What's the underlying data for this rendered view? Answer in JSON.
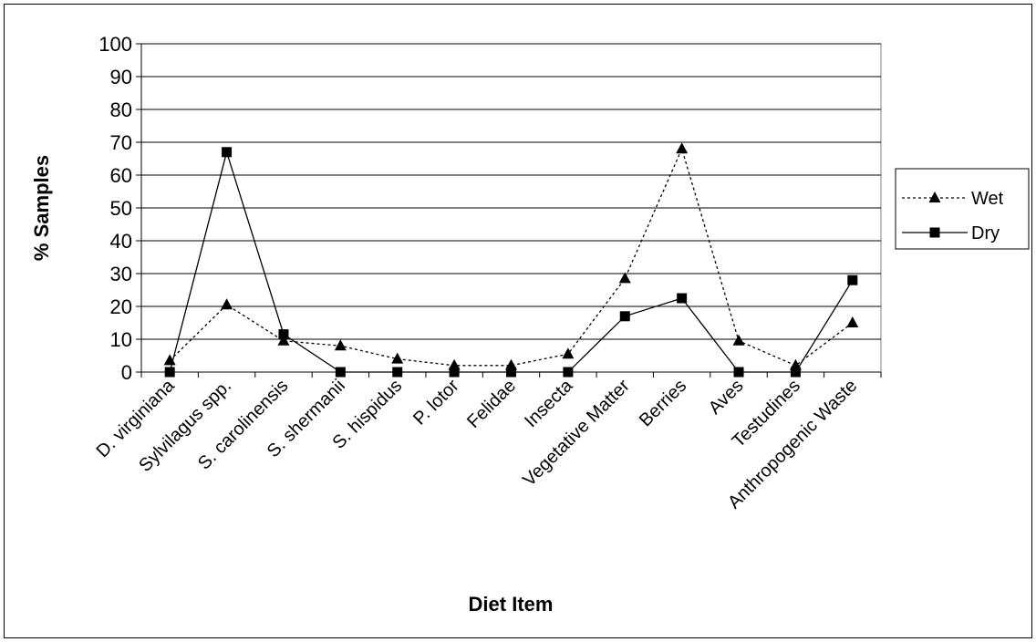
{
  "chart_data": {
    "type": "line",
    "title": "",
    "xlabel": "Diet Item",
    "ylabel": "% Samples",
    "ylim": [
      0,
      100
    ],
    "yticks": [
      0,
      10,
      20,
      30,
      40,
      50,
      60,
      70,
      80,
      90,
      100
    ],
    "grid": "horizontal",
    "legend_position": "right",
    "categories": [
      "D. virginiana",
      "Sylvilagus spp.",
      "S. carolinensis",
      "S. shermanii",
      "S. hispidus",
      "P. lotor",
      "Felidae",
      "Insecta",
      "Vegetative Matter",
      "Berries",
      "Aves",
      "Testudines",
      "Anthropogenic Waste"
    ],
    "series": [
      {
        "name": "Wet",
        "marker": "triangle",
        "line_style": "dotted",
        "color": "#000000",
        "values": [
          3.5,
          20.5,
          9.5,
          8,
          4,
          2,
          2,
          5.5,
          28.5,
          68,
          9.5,
          2,
          15
        ]
      },
      {
        "name": "Dry",
        "marker": "square",
        "line_style": "solid",
        "color": "#000000",
        "values": [
          0,
          67,
          11.5,
          0,
          0,
          0,
          0,
          0,
          17,
          22.5,
          0,
          0,
          28
        ]
      }
    ]
  }
}
